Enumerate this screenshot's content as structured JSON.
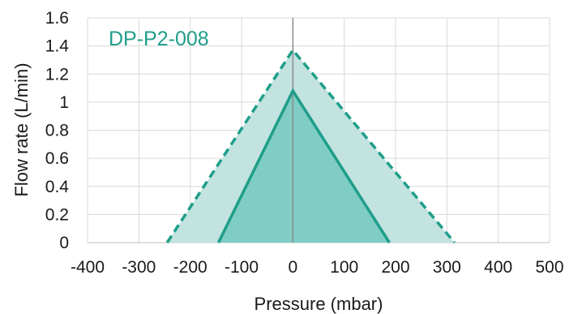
{
  "chart_data": {
    "type": "area",
    "title": "",
    "annotation": "DP-P2-008",
    "xlabel": "Pressure (mbar)",
    "ylabel": "Flow rate (L/min)",
    "xlim": [
      -400,
      500
    ],
    "ylim": [
      0,
      1.6
    ],
    "x_ticks": [
      "-400",
      "-300",
      "-200",
      "-100",
      "0",
      "100",
      "200",
      "300",
      "400",
      "500"
    ],
    "y_ticks": [
      "0",
      "0.2",
      "0.4",
      "0.6",
      "0.8",
      "1",
      "1.2",
      "1.4",
      "1.6"
    ],
    "grid": true,
    "legend": "none",
    "series": [
      {
        "style": "dashed",
        "x": [
          -245,
          0,
          315
        ],
        "y": [
          0,
          1.37,
          0
        ],
        "line_color": "#1f9e8a",
        "fill_color": "#c2e3df"
      },
      {
        "style": "solid",
        "x": [
          -145,
          0,
          188
        ],
        "y": [
          0,
          1.08,
          0
        ],
        "line_color": "#1f9e8a",
        "fill_color": "#7fcdc4"
      }
    ]
  }
}
